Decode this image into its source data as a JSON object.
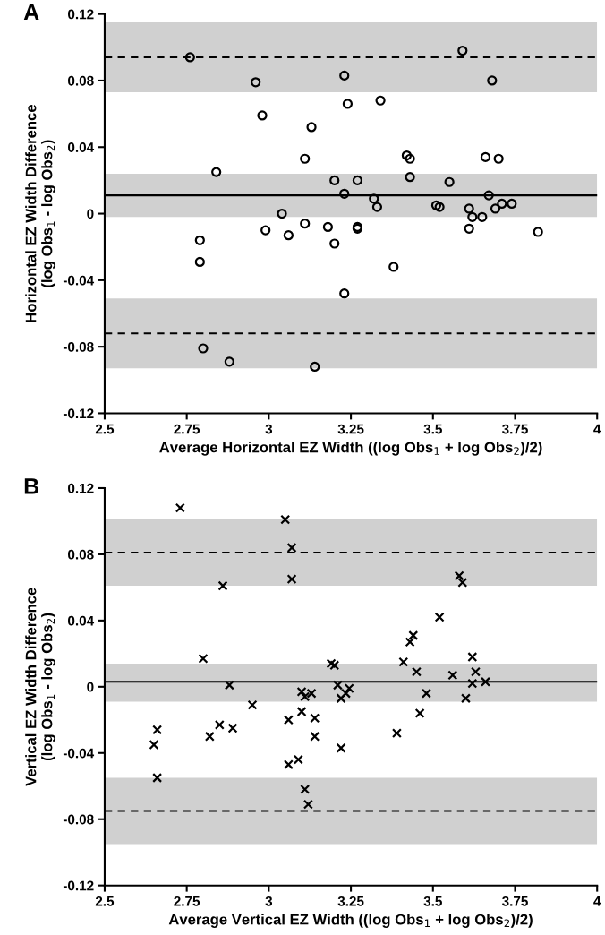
{
  "chart_data": [
    {
      "type": "scatter",
      "annotations": [
        "A"
      ],
      "xlabel": "Average Horizontal EZ Width ((log Obs$_{1}$ + log Obs$_{2}$)/2)",
      "ylabel": "Horizontal EZ Width Difference\n(log Obs$_{1}$ - log Obs$_{2}$)",
      "xlim": [
        2.5,
        4
      ],
      "xticks": [
        2.5,
        2.75,
        3,
        3.25,
        3.5,
        3.75,
        4
      ],
      "ylim": [
        -0.12,
        0.12
      ],
      "yticks": [
        -0.12,
        -0.08,
        -0.04,
        0,
        0.04,
        0.08,
        0.12
      ],
      "grid": false,
      "marker": "circle",
      "series": [
        {
          "color": "#000000",
          "x": [
            2.76,
            2.79,
            2.79,
            2.8,
            2.84,
            2.88,
            2.96,
            2.98,
            2.99,
            3.04,
            3.06,
            3.11,
            3.11,
            3.13,
            3.14,
            3.18,
            3.2,
            3.2,
            3.23,
            3.23,
            3.23,
            3.24,
            3.27,
            3.27,
            3.27,
            3.32,
            3.33,
            3.34,
            3.38,
            3.42,
            3.43,
            3.43,
            3.51,
            3.52,
            3.55,
            3.59,
            3.61,
            3.61,
            3.62,
            3.65,
            3.66,
            3.67,
            3.68,
            3.69,
            3.7,
            3.71,
            3.74,
            3.82
          ],
          "values": [
            0.094,
            -0.016,
            -0.029,
            -0.081,
            0.025,
            -0.089,
            0.079,
            0.059,
            -0.01,
            0.0,
            -0.013,
            0.033,
            -0.006,
            0.052,
            -0.092,
            -0.008,
            0.02,
            -0.018,
            0.083,
            0.012,
            -0.048,
            0.066,
            0.02,
            -0.009,
            -0.008,
            0.009,
            0.004,
            0.068,
            -0.032,
            0.035,
            0.033,
            0.022,
            0.005,
            0.004,
            0.019,
            0.098,
            -0.009,
            0.003,
            -0.002,
            -0.002,
            0.034,
            0.011,
            0.08,
            0.003,
            0.033,
            0.006,
            0.006,
            -0.011
          ]
        }
      ],
      "ref_lines": [
        {
          "axis": "y",
          "value": 0.011,
          "line_style": "solid"
        },
        {
          "axis": "y",
          "value": 0.094,
          "line_style": "dashed"
        },
        {
          "axis": "y",
          "value": -0.072,
          "line_style": "dashed"
        }
      ],
      "bands": [
        {
          "axis": "y",
          "from": -0.002,
          "to": 0.024,
          "color": "#d0d0d0"
        },
        {
          "axis": "y",
          "from": 0.073,
          "to": 0.115,
          "color": "#d0d0d0"
        },
        {
          "axis": "y",
          "from": -0.093,
          "to": -0.051,
          "color": "#d0d0d0"
        }
      ]
    },
    {
      "type": "scatter",
      "annotations": [
        "B"
      ],
      "xlabel": "Average Vertical EZ Width ((log Obs$_{1}$ + log Obs$_{2}$)/2)",
      "ylabel": "Vertical EZ Width Difference\n(log Obs$_{1}$ - log Obs$_{2}$)",
      "xlim": [
        2.5,
        4
      ],
      "xticks": [
        2.5,
        2.75,
        3,
        3.25,
        3.5,
        3.75,
        4
      ],
      "ylim": [
        -0.12,
        0.12
      ],
      "yticks": [
        -0.12,
        -0.08,
        -0.04,
        0,
        0.04,
        0.08,
        0.12
      ],
      "grid": false,
      "marker": "cross",
      "series": [
        {
          "color": "#000000",
          "x": [
            2.73,
            2.65,
            2.66,
            2.66,
            2.8,
            2.82,
            2.85,
            2.86,
            2.88,
            2.89,
            2.95,
            3.05,
            3.07,
            3.07,
            3.06,
            3.06,
            3.09,
            3.1,
            3.11,
            3.1,
            3.11,
            3.12,
            3.13,
            3.14,
            3.14,
            3.19,
            3.2,
            3.21,
            3.22,
            3.22,
            3.245,
            3.235,
            3.39,
            3.41,
            3.43,
            3.44,
            3.45,
            3.46,
            3.48,
            3.52,
            3.56,
            3.58,
            3.59,
            3.6,
            3.62,
            3.63,
            3.62,
            3.66
          ],
          "values": [
            0.108,
            -0.035,
            -0.026,
            -0.055,
            0.017,
            -0.03,
            -0.023,
            0.061,
            0.001,
            -0.025,
            -0.011,
            0.101,
            0.084,
            0.065,
            -0.02,
            -0.047,
            -0.044,
            -0.003,
            -0.006,
            -0.015,
            -0.062,
            -0.071,
            -0.004,
            -0.019,
            -0.03,
            0.014,
            0.013,
            0.001,
            -0.007,
            -0.037,
            -0.001,
            -0.004,
            -0.028,
            0.015,
            0.027,
            0.031,
            0.009,
            -0.016,
            -0.004,
            0.042,
            0.007,
            0.067,
            0.063,
            -0.007,
            0.018,
            0.009,
            0.002,
            0.003
          ]
        }
      ],
      "ref_lines": [
        {
          "axis": "y",
          "value": 0.003,
          "line_style": "solid"
        },
        {
          "axis": "y",
          "value": 0.081,
          "line_style": "dashed"
        },
        {
          "axis": "y",
          "value": -0.075,
          "line_style": "dashed"
        }
      ],
      "bands": [
        {
          "axis": "y",
          "from": -0.009,
          "to": 0.014,
          "color": "#d0d0d0"
        },
        {
          "axis": "y",
          "from": 0.061,
          "to": 0.101,
          "color": "#d0d0d0"
        },
        {
          "axis": "y",
          "from": -0.095,
          "to": -0.055,
          "color": "#d0d0d0"
        }
      ]
    }
  ]
}
